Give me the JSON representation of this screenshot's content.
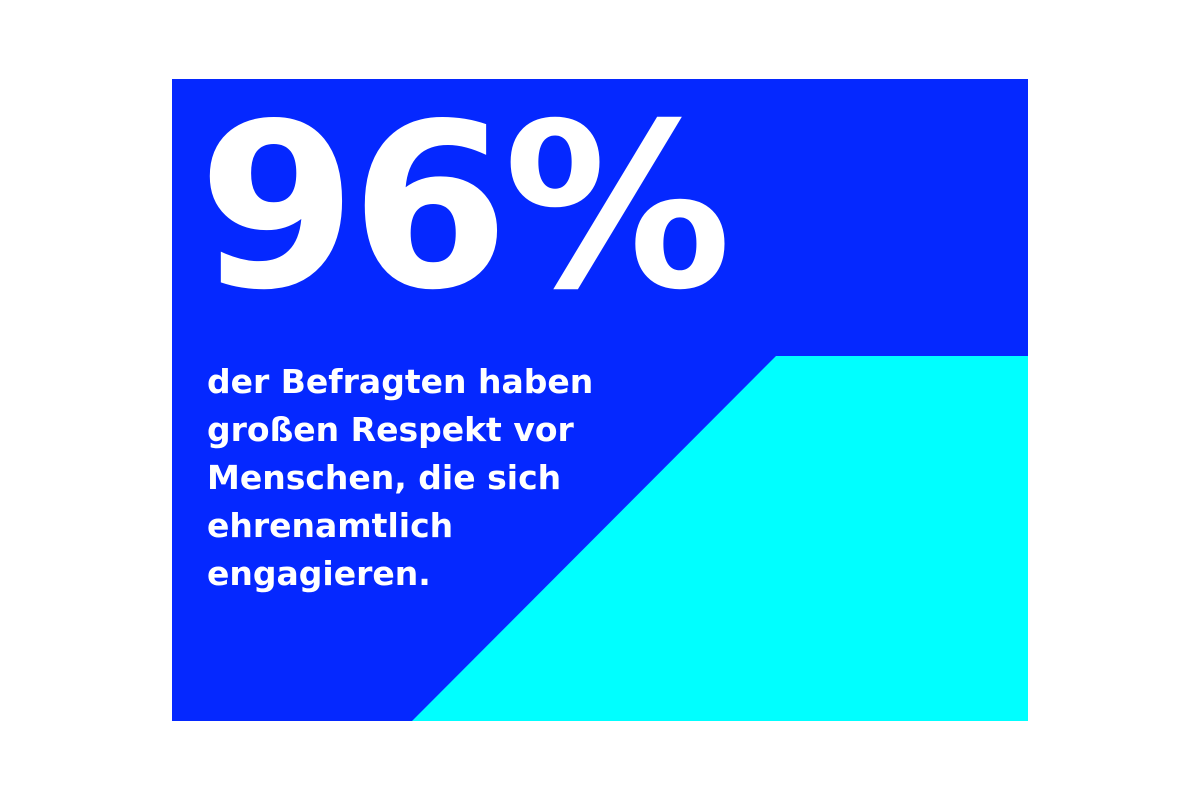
{
  "statistic": {
    "value": "96%",
    "caption_lines": [
      "der Befragten haben",
      "großen Respekt vor",
      "Menschen, die sich",
      "ehrenamtlich",
      "engagieren."
    ]
  },
  "colors": {
    "primary_blue": "#0528ff",
    "accent_cyan": "#00ffff",
    "text": "#ffffff",
    "page_background": "#ffffff"
  }
}
